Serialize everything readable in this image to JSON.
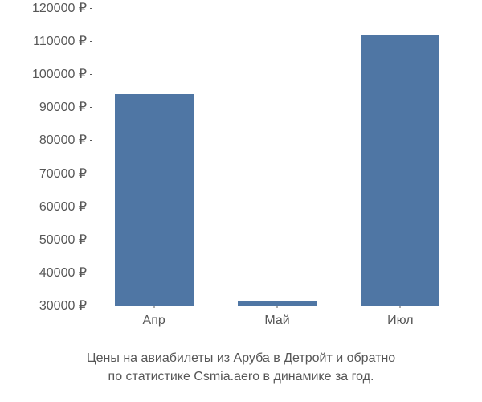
{
  "chart": {
    "type": "bar",
    "categories": [
      "Апр",
      "Май",
      "Июл"
    ],
    "values": [
      94000,
      31500,
      112000
    ],
    "bar_color": "#4f76a4",
    "bar_width_ratio": 0.64,
    "ylim": [
      30000,
      120000
    ],
    "ytick_step": 10000,
    "ytick_suffix": " ₽",
    "y_ticks": [
      30000,
      40000,
      50000,
      60000,
      70000,
      80000,
      90000,
      100000,
      110000,
      120000
    ],
    "background_color": "#ffffff",
    "ylabel_fontsize": 16,
    "xlabel_fontsize": 16,
    "tick_color": "#575757"
  },
  "caption": {
    "line1": "Цены на авиабилеты из Аруба в Детройт и обратно",
    "line2": "по статистике Csmia.aero в динамике за год."
  }
}
